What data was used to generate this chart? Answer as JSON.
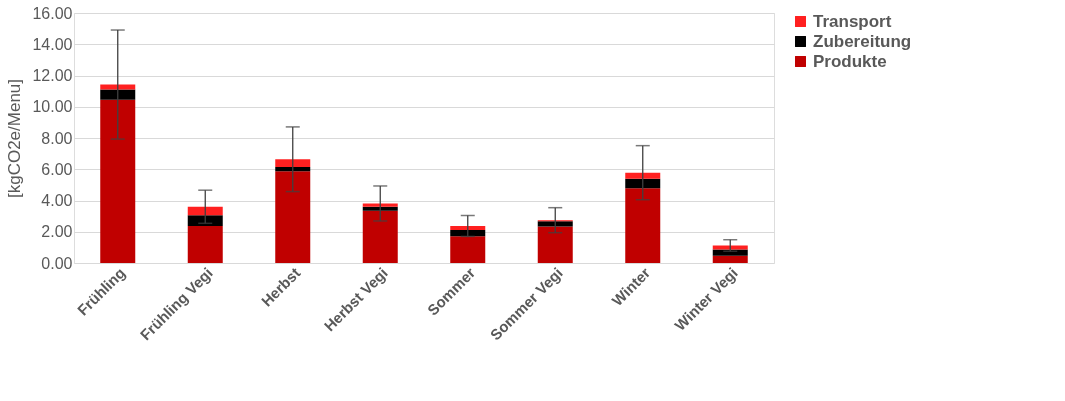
{
  "chart_data": {
    "type": "bar",
    "stacked": true,
    "ylabel": "[kgCO2e/Menu]",
    "categories": [
      "Frühling",
      "Frühling Vegi",
      "Herbst",
      "Herbst Vegi",
      "Sommer",
      "Sommer Vegi",
      "Winter",
      "Winter Vegi"
    ],
    "series": [
      {
        "name": "Produkte",
        "color": "#c00000",
        "values": [
          10.45,
          2.37,
          5.88,
          3.34,
          1.72,
          2.33,
          4.78,
          0.47
        ]
      },
      {
        "name": "Zubereitung",
        "color": "#000000",
        "values": [
          0.65,
          0.69,
          0.26,
          0.26,
          0.39,
          0.34,
          0.61,
          0.39
        ]
      },
      {
        "name": "Transport",
        "color": "#ff2020",
        "values": [
          0.32,
          0.54,
          0.5,
          0.21,
          0.26,
          0.07,
          0.39,
          0.26
        ],
        "errors": [
          3.49,
          1.06,
          2.07,
          1.12,
          0.67,
          0.8,
          1.73,
          0.37
        ]
      }
    ],
    "ylim": [
      0,
      16
    ],
    "yticks": [
      {
        "value": 0,
        "label": "0.00"
      },
      {
        "value": 2,
        "label": "2.00"
      },
      {
        "value": 4,
        "label": "4.00"
      },
      {
        "value": 6,
        "label": "6.00"
      },
      {
        "value": 8,
        "label": "8.00"
      },
      {
        "value": 10,
        "label": "10.00"
      },
      {
        "value": 12,
        "label": "12.00"
      },
      {
        "value": 14,
        "label": "14.00"
      },
      {
        "value": 16,
        "label": "16.00"
      }
    ],
    "grid": "y",
    "legend": "right"
  }
}
